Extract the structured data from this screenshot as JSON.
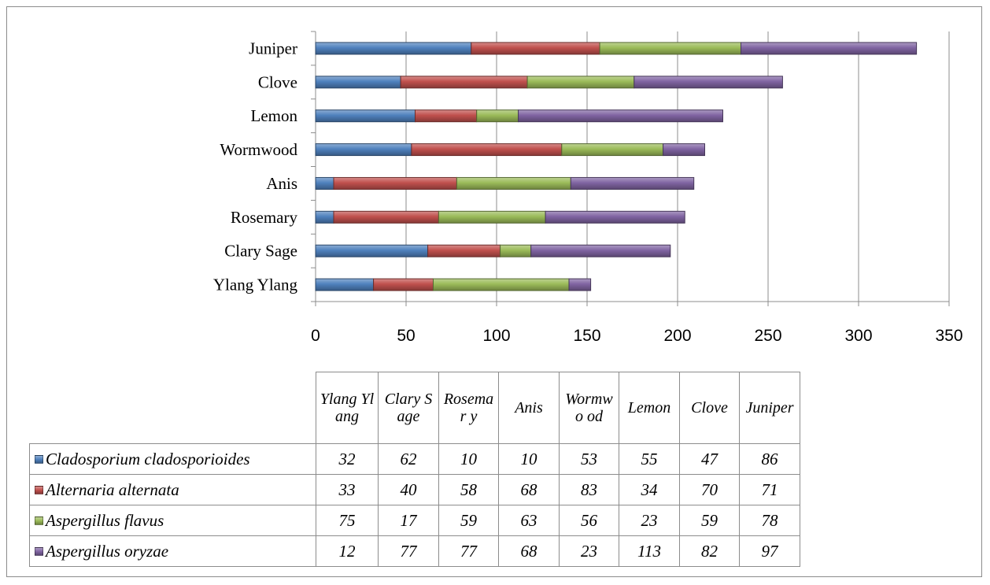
{
  "chart_data": {
    "type": "bar",
    "orientation": "horizontal",
    "stacked": true,
    "categories": [
      "Ylang Ylang",
      "Clary Sage",
      "Rosemary",
      "Anis",
      "Wormwood",
      "Lemon",
      "Clove",
      "Juniper"
    ],
    "category_labels": [
      "Ylang Ylang",
      "Clary Sage",
      "Rosemary",
      "Anis",
      "Wormwood",
      "Lemon ",
      "Clove",
      "Juniper"
    ],
    "table_headers": [
      "Ylang Ylang",
      "Clary Sage",
      "Rosemar y",
      "Anis",
      "Wormwo od",
      "Lemon",
      "Clove",
      "Juniper"
    ],
    "series": [
      {
        "name": "Cladosporium cladosporioides",
        "color": "#4f81bd",
        "values": [
          32,
          62,
          10,
          10,
          53,
          55,
          47,
          86
        ]
      },
      {
        "name": "Alternaria alternata",
        "color": "#c0504d",
        "values": [
          33,
          40,
          58,
          68,
          83,
          34,
          70,
          71
        ]
      },
      {
        "name": "Aspergillus flavus",
        "color": "#9bbb59",
        "values": [
          75,
          17,
          59,
          63,
          56,
          23,
          59,
          78
        ]
      },
      {
        "name": "Aspergillus oryzae",
        "color": "#8064a2",
        "values": [
          12,
          77,
          77,
          68,
          23,
          113,
          82,
          97
        ]
      }
    ],
    "xlim": [
      0,
      350
    ],
    "xticks": [
      0,
      50,
      100,
      150,
      200,
      250,
      300,
      350
    ],
    "grid": true,
    "legend": "data-table-below"
  }
}
